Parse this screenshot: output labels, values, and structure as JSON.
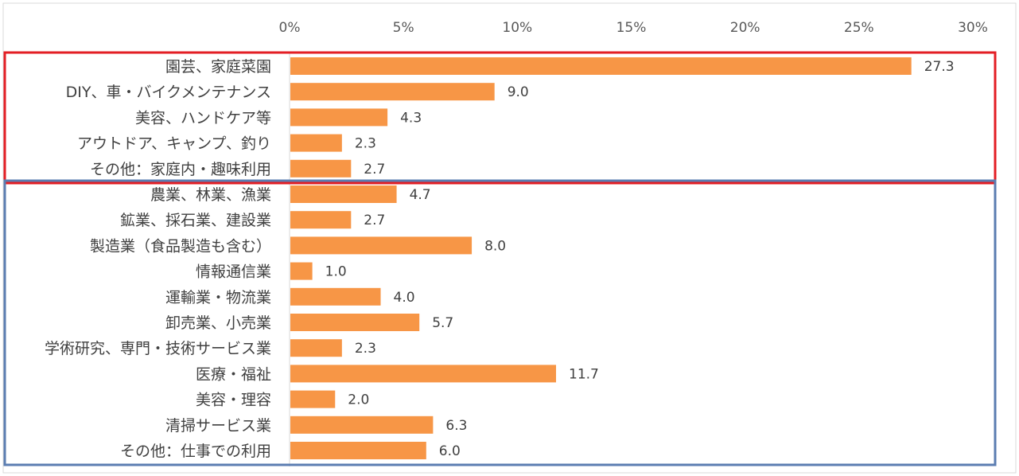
{
  "chart_data": {
    "type": "bar",
    "orientation": "horizontal",
    "xlim": [
      0,
      30
    ],
    "x_ticks": [
      0,
      5,
      10,
      15,
      20,
      25,
      30
    ],
    "x_tick_labels": [
      "0%",
      "5%",
      "10%",
      "15%",
      "20%",
      "25%",
      "30%"
    ],
    "axis_position": "top",
    "grid": false,
    "bar_color": "#F79646",
    "groups": [
      {
        "border_color": "#E31E24",
        "start": 0,
        "end": 4
      },
      {
        "border_color": "#5B7DB1",
        "start": 5,
        "end": 15
      }
    ],
    "categories": [
      "園芸、家庭菜園",
      "DIY、車・バイクメンテナンス",
      "美容、ハンドケア等",
      "アウトドア、キャンプ、釣り",
      "その他：家庭内・趣味利用",
      "農業、林業、漁業",
      "鉱業、採石業、建設業",
      "製造業（食品製造も含む）",
      "情報通信業",
      "運輸業・物流業",
      "卸売業、小売業",
      "学術研究、専門・技術サービス業",
      "医療・福祉",
      "美容・理容",
      "清掃サービス業",
      "その他：仕事での利用"
    ],
    "values": [
      27.3,
      9.0,
      4.3,
      2.3,
      2.7,
      4.7,
      2.7,
      8.0,
      1.0,
      4.0,
      5.7,
      2.3,
      11.7,
      2.0,
      6.3,
      6.0
    ],
    "value_labels": [
      "27.3",
      "9.0",
      "4.3",
      "2.3",
      "2.7",
      "4.7",
      "2.7",
      "8.0",
      "1.0",
      "4.0",
      "5.7",
      "2.3",
      "11.7",
      "2.0",
      "6.3",
      "6.0"
    ]
  }
}
